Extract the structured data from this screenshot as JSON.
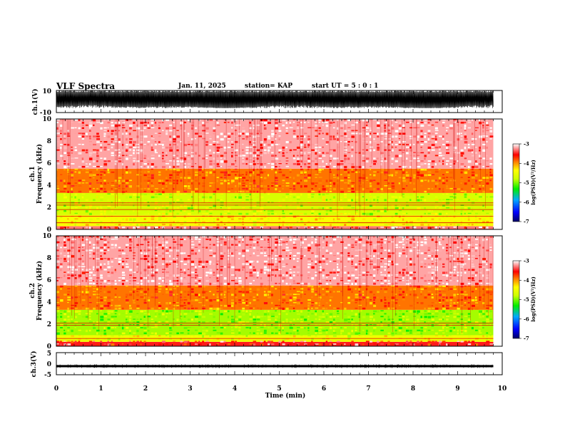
{
  "header": {
    "title": "VLF Spectra",
    "date": "Jan. 11, 2025",
    "station": "station= KAP",
    "start_ut": "start  UT =   5 : 0  : 1"
  },
  "chart_data": [
    {
      "type": "line",
      "panel": "ch1-waveform",
      "ylabel": "ch.1(V)",
      "ylim": [
        -10,
        10
      ],
      "yticks": [
        "10",
        "-10"
      ],
      "xlim": [
        0,
        10
      ],
      "data_end_min": 9.8,
      "description_of_values": "noise waveform mostly between -6 and 10 V",
      "series": [
        {
          "min": -8,
          "max": 10,
          "color": "#000000"
        }
      ]
    },
    {
      "type": "heatmap",
      "panel": "ch1-spectrogram",
      "ylabel": "ch.1\nFrequency (kHz)",
      "ylabel_line1": "ch.1",
      "ylabel_line2": "Frequency  (kHz)",
      "ylim": [
        0,
        10
      ],
      "yticks": [
        "0",
        "2",
        "4",
        "6",
        "8",
        "10"
      ],
      "xlim": [
        0,
        10
      ],
      "data_end_min": 9.8,
      "bands": [
        {
          "f_low": 0.0,
          "f_high": 0.3,
          "level": -3.3
        },
        {
          "f_low": 0.3,
          "f_high": 1.3,
          "level": -4.4
        },
        {
          "f_low": 1.3,
          "f_high": 3.3,
          "level": -4.7
        },
        {
          "f_low": 3.3,
          "f_high": 5.5,
          "level": -3.9
        },
        {
          "f_low": 5.5,
          "f_high": 10.0,
          "level": -3.2
        }
      ],
      "lines_khz": [
        0.6,
        1.2,
        1.8,
        2.2,
        2.4
      ],
      "colorbar": {
        "label": "log(PSD)(V²/Hz)",
        "range": [
          -7,
          -3
        ],
        "ticks": [
          "-3",
          "-4",
          "-5",
          "-6",
          "-7"
        ]
      }
    },
    {
      "type": "heatmap",
      "panel": "ch2-spectrogram",
      "ylabel": "ch.2\nFrequency (kHz)",
      "ylabel_line1": "ch.2",
      "ylabel_line2": "Frequency  (kHz)",
      "ylim": [
        0,
        10
      ],
      "yticks": [
        "0",
        "2",
        "4",
        "6",
        "8",
        "10"
      ],
      "xlim": [
        0,
        10
      ],
      "data_end_min": 9.8,
      "bands": [
        {
          "f_low": 0.0,
          "f_high": 0.4,
          "level": -3.5
        },
        {
          "f_low": 0.4,
          "f_high": 1.0,
          "level": -4.5
        },
        {
          "f_low": 1.0,
          "f_high": 3.3,
          "level": -4.9
        },
        {
          "f_low": 3.3,
          "f_high": 5.5,
          "level": -3.9
        },
        {
          "f_low": 5.5,
          "f_high": 10.0,
          "level": -3.2
        }
      ],
      "lines_khz": [
        0.7,
        1.9,
        2.1
      ],
      "colorbar": {
        "label": "log(PSD)(V²/Hz)",
        "range": [
          -7,
          -3
        ],
        "ticks": [
          "-3",
          "-4",
          "-5",
          "-6",
          "-7"
        ]
      }
    },
    {
      "type": "line",
      "panel": "ch3-waveform",
      "ylabel": "ch.3(V)",
      "ylim": [
        -5,
        5
      ],
      "yticks": [
        "5",
        "0",
        "-5"
      ],
      "xlim": [
        0,
        10
      ],
      "data_end_min": 9.8,
      "series": [
        {
          "min": -1.6,
          "max": -0.6,
          "color": "#000000"
        }
      ]
    }
  ],
  "xaxis": {
    "label": "Time  (min)",
    "ticks": [
      "0",
      "1",
      "2",
      "3",
      "4",
      "5",
      "6",
      "7",
      "8",
      "9",
      "10"
    ]
  },
  "colors": {
    "axis": "#000000",
    "background": "#ffffff"
  }
}
